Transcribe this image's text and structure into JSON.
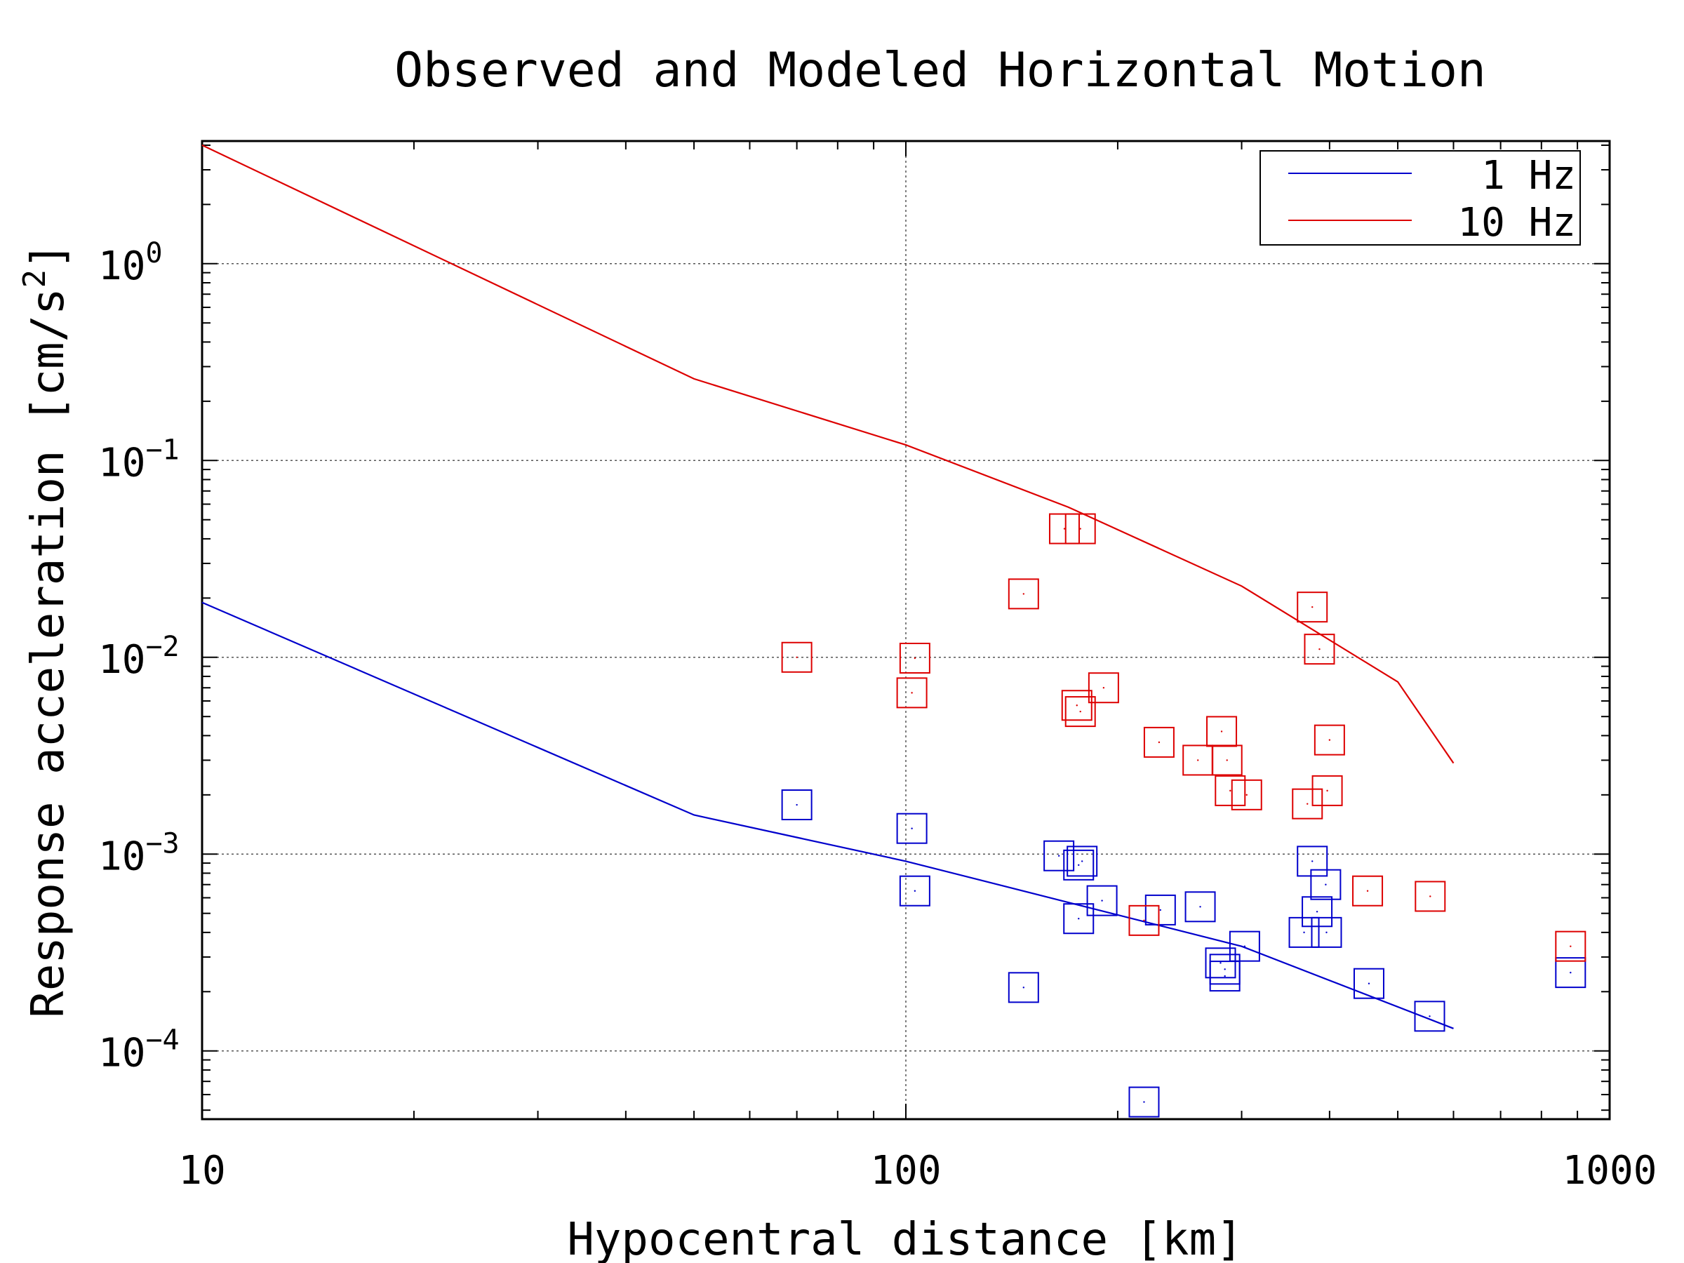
{
  "chart_data": {
    "type": "scatter",
    "title": "Observed and Modeled Horizontal Motion",
    "xlabel": "Hypocentral distance [km]",
    "ylabel_main": "Response acceleration [cm/s",
    "ylabel_sup": "2",
    "ylabel_close": "]",
    "xscale": "log",
    "yscale": "log",
    "xlim": [
      10,
      1000
    ],
    "ylim": [
      4.5e-05,
      4.2
    ],
    "xticks": [
      {
        "value": 10,
        "label": "10"
      },
      {
        "value": 100,
        "label": "100"
      },
      {
        "value": 1000,
        "label": "1000"
      }
    ],
    "yticks": [
      {
        "value": 1,
        "base": "10",
        "exp": "0"
      },
      {
        "value": 0.1,
        "base": "10",
        "exp": "−1"
      },
      {
        "value": 0.01,
        "base": "10",
        "exp": "−2"
      },
      {
        "value": 0.001,
        "base": "10",
        "exp": "−3"
      },
      {
        "value": 0.0001,
        "base": "10",
        "exp": "−4"
      }
    ],
    "grid": true,
    "legend_position": "top-right",
    "series": [
      {
        "name": "1 Hz",
        "color": "#0000cc",
        "model_line": [
          [
            10,
            0.019
          ],
          [
            50,
            0.00158
          ],
          [
            100,
            0.00092
          ],
          [
            300,
            0.00034
          ],
          [
            600,
            0.00013
          ]
        ],
        "observed": [
          [
            70,
            0.00178
          ],
          [
            102,
            0.00135
          ],
          [
            103,
            0.00065
          ],
          [
            147,
            0.00021
          ],
          [
            165,
            0.00098
          ],
          [
            176,
            0.00088
          ],
          [
            178,
            0.00092
          ],
          [
            176,
            0.00047
          ],
          [
            190,
            0.00058
          ],
          [
            230,
            0.00052
          ],
          [
            262,
            0.00054
          ],
          [
            218,
            5.5e-05
          ],
          [
            280,
            0.00028
          ],
          [
            284,
            0.00024
          ],
          [
            284,
            0.00026
          ],
          [
            303,
            0.00034
          ],
          [
            368,
            0.0004
          ],
          [
            378,
            0.00092
          ],
          [
            384,
            0.00051
          ],
          [
            395,
            0.0007
          ],
          [
            396,
            0.0004
          ],
          [
            455,
            0.00022
          ],
          [
            555,
            0.00015
          ],
          [
            880,
            0.00025
          ]
        ]
      },
      {
        "name": "10 Hz",
        "color": "#dd0000",
        "model_line": [
          [
            10,
            4.0
          ],
          [
            50,
            0.26
          ],
          [
            100,
            0.12
          ],
          [
            170,
            0.058
          ],
          [
            300,
            0.023
          ],
          [
            500,
            0.0075
          ],
          [
            600,
            0.0029
          ]
        ],
        "observed": [
          [
            70,
            0.01
          ],
          [
            103,
            0.0099
          ],
          [
            102,
            0.0066
          ],
          [
            147,
            0.021
          ],
          [
            168,
            0.045
          ],
          [
            177,
            0.045
          ],
          [
            175,
            0.0057
          ],
          [
            177,
            0.0053
          ],
          [
            191,
            0.007
          ],
          [
            229,
            0.0037
          ],
          [
            260,
            0.003
          ],
          [
            281,
            0.0042
          ],
          [
            286,
            0.003
          ],
          [
            289,
            0.0021
          ],
          [
            305,
            0.002
          ],
          [
            372,
            0.0018
          ],
          [
            378,
            0.018
          ],
          [
            387,
            0.011
          ],
          [
            397,
            0.0021
          ],
          [
            400,
            0.0038
          ],
          [
            218,
            0.00046
          ],
          [
            453,
            0.00065
          ],
          [
            556,
            0.00061
          ],
          [
            880,
            0.00034
          ]
        ]
      }
    ]
  }
}
